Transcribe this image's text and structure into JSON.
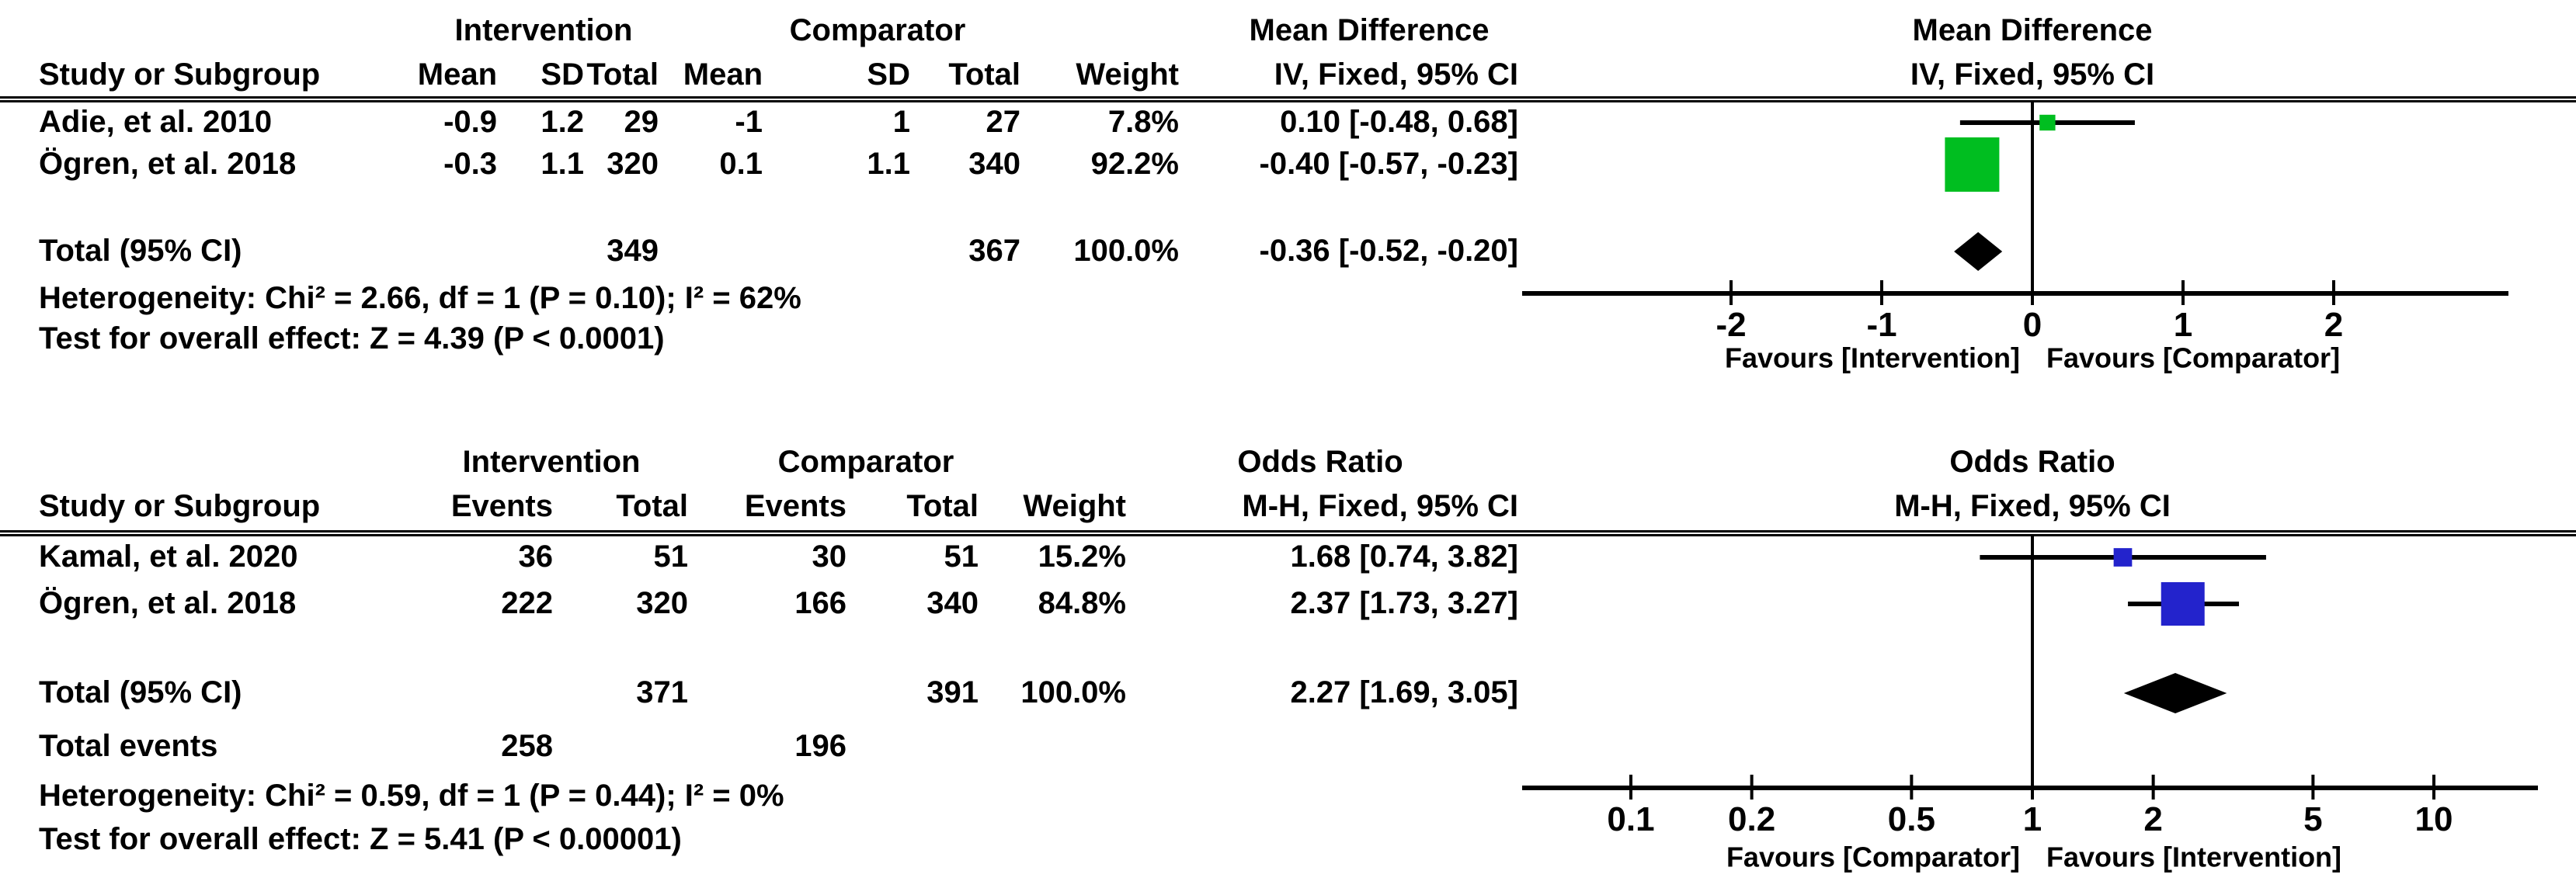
{
  "figure": {
    "background": "#ffffff",
    "text_color": "#000000",
    "axis_color": "#000000",
    "diamond_color": "#000000"
  },
  "chart_data": [
    {
      "type": "forest",
      "panel": "top",
      "effect_measure": "Mean Difference",
      "method_header": "IV, Fixed, 95% CI",
      "scale": "linear",
      "axis_ticks": [
        -2,
        -1,
        0,
        1,
        2
      ],
      "axis_range": [
        -3.4,
        3.2
      ],
      "favours_left": "Favours [Intervention]",
      "favours_right": "Favours [Comparator]",
      "marker_color": "#00BE20",
      "headers": {
        "study": "Study or Subgroup",
        "group1": "Intervention",
        "group2": "Comparator",
        "effect_line1": "Mean Difference",
        "effect_line2": "IV, Fixed, 95% CI",
        "plot_line1": "Mean Difference",
        "plot_line2": "IV, Fixed, 95% CI",
        "sub_columns": [
          "Mean",
          "SD",
          "Total",
          "Mean",
          "SD",
          "Total",
          "Weight"
        ]
      },
      "studies": [
        {
          "name": "Adie, et al. 2010",
          "cells": [
            "-0.9",
            "1.2",
            "29",
            "-1",
            "1",
            "27",
            "7.8%"
          ],
          "ci_text": "0.10 [-0.48, 0.68]",
          "est": 0.1,
          "lo": -0.48,
          "hi": 0.68,
          "weight": 7.8
        },
        {
          "name": "Ögren, et al. 2018",
          "cells": [
            "-0.3",
            "1.1",
            "320",
            "0.1",
            "1.1",
            "340",
            "92.2%"
          ],
          "ci_text": "-0.40 [-0.57, -0.23]",
          "est": -0.4,
          "lo": -0.57,
          "hi": -0.23,
          "weight": 92.2
        }
      ],
      "total": {
        "label": "Total (95% CI)",
        "cells": [
          "",
          "",
          "349",
          "",
          "",
          "367",
          "100.0%"
        ],
        "ci_text": "-0.36 [-0.52, -0.20]",
        "est": -0.36,
        "lo": -0.52,
        "hi": -0.2
      },
      "footnotes": [
        "Heterogeneity: Chi² = 2.66, df = 1 (P = 0.10); I² = 62%",
        "Test for overall effect: Z = 4.39 (P < 0.0001)"
      ]
    },
    {
      "type": "forest",
      "panel": "bottom",
      "effect_measure": "Odds Ratio",
      "method_header": "M-H, Fixed, 95% CI",
      "scale": "log",
      "axis_ticks": [
        0.1,
        0.2,
        0.5,
        1,
        2,
        5,
        10
      ],
      "axis_range": [
        0.05,
        18
      ],
      "favours_left": "Favours [Comparator]",
      "favours_right": "Favours [Intervention]",
      "marker_color": "#2323CC",
      "headers": {
        "study": "Study or Subgroup",
        "group1": "Intervention",
        "group2": "Comparator",
        "effect_line1": "Odds Ratio",
        "effect_line2": "M-H, Fixed, 95% CI",
        "plot_line1": "Odds Ratio",
        "plot_line2": "M-H, Fixed, 95% CI",
        "sub_columns": [
          "Events",
          "Total",
          "Events",
          "Total",
          "Weight"
        ]
      },
      "studies": [
        {
          "name": "Kamal, et al. 2020",
          "cells": [
            "36",
            "51",
            "30",
            "51",
            "15.2%"
          ],
          "ci_text": "1.68 [0.74, 3.82]",
          "est": 1.68,
          "lo": 0.74,
          "hi": 3.82,
          "weight": 15.2
        },
        {
          "name": "Ögren, et al. 2018",
          "cells": [
            "222",
            "320",
            "166",
            "340",
            "84.8%"
          ],
          "ci_text": "2.37 [1.73, 3.27]",
          "est": 2.37,
          "lo": 1.73,
          "hi": 3.27,
          "weight": 84.8
        }
      ],
      "total": {
        "label": "Total (95% CI)",
        "cells": [
          "",
          "371",
          "",
          "391",
          "100.0%"
        ],
        "ci_text": "2.27 [1.69, 3.05]",
        "est": 2.27,
        "lo": 1.69,
        "hi": 3.05
      },
      "total_events": {
        "label": "Total events",
        "cells": [
          "258",
          "",
          "196",
          "",
          ""
        ]
      },
      "footnotes": [
        "Heterogeneity: Chi² = 0.59, df = 1 (P = 0.44); I² = 0%",
        "Test for overall effect: Z = 5.41 (P < 0.00001)"
      ]
    }
  ]
}
